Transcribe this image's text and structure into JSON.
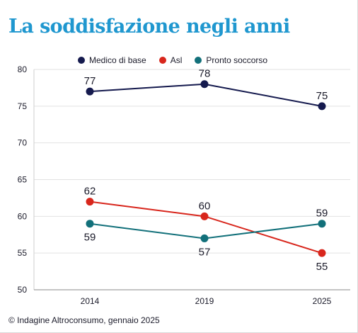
{
  "chart_data": {
    "type": "line",
    "title": "La soddisfazione negli anni",
    "xlabel": "",
    "ylabel": "",
    "categories": [
      "2014",
      "2019",
      "2025"
    ],
    "ylim": [
      50,
      80
    ],
    "yticks": [
      50,
      55,
      60,
      65,
      70,
      75,
      80
    ],
    "grid": true,
    "legend_position": "top",
    "series": [
      {
        "name": "Medico di base",
        "color": "#151a4e",
        "values": [
          77,
          78,
          75
        ],
        "label_positions": [
          "above",
          "above",
          "above"
        ]
      },
      {
        "name": "Asl",
        "color": "#d8261c",
        "values": [
          62,
          60,
          55
        ],
        "label_positions": [
          "above",
          "above",
          "below"
        ]
      },
      {
        "name": "Pronto soccorso",
        "color": "#12707a",
        "values": [
          59,
          57,
          59
        ],
        "label_positions": [
          "below",
          "below",
          "above"
        ]
      }
    ]
  },
  "footer": {
    "source": "© Indagine Altroconsumo, gennaio 2025"
  }
}
